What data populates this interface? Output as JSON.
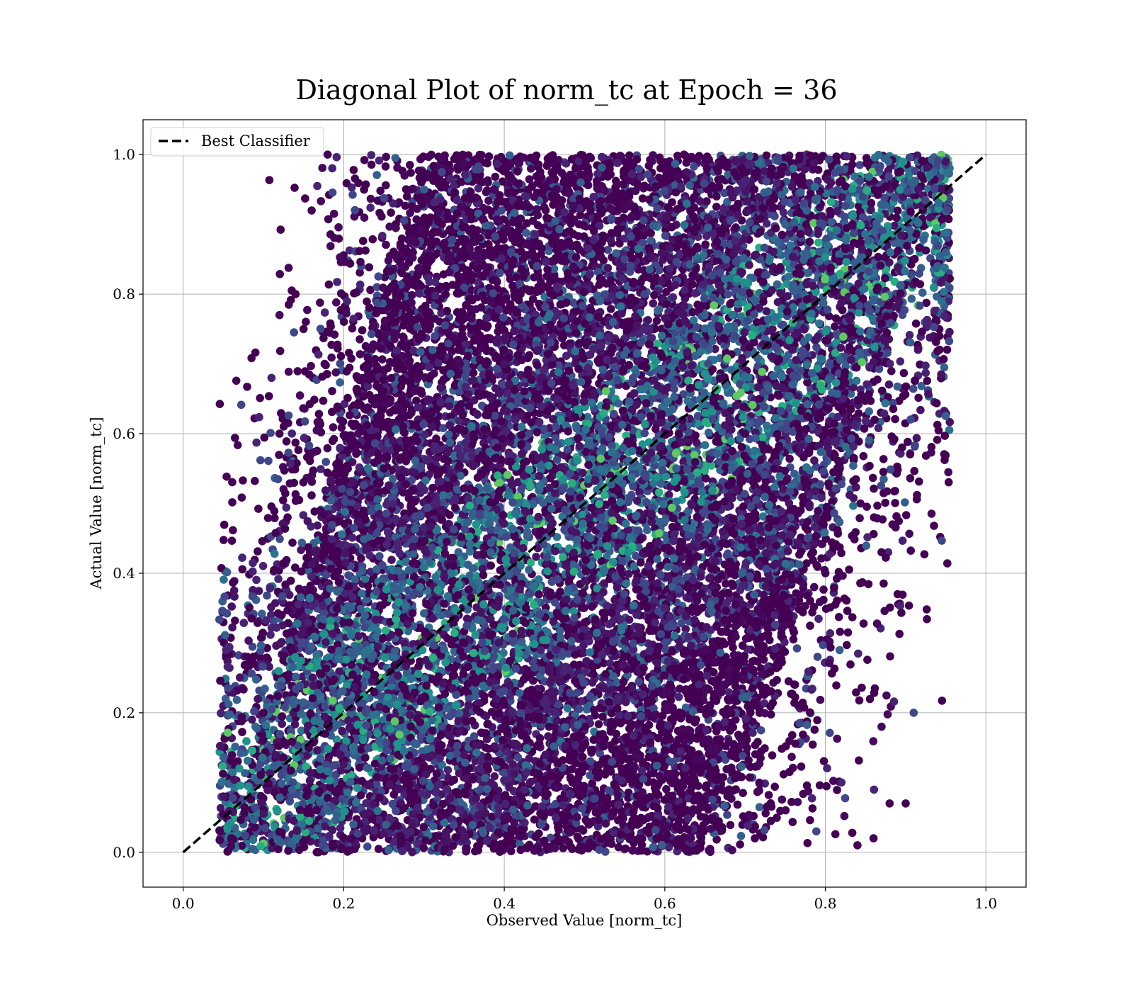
{
  "chart_data": {
    "type": "scatter",
    "title": "Diagonal Plot of norm_tc at Epoch = 36",
    "xlabel": "Observed Value [norm_tc]",
    "ylabel": "Actual Value [norm_tc]",
    "xlim": [
      -0.05,
      1.05
    ],
    "ylim": [
      -0.05,
      1.05
    ],
    "xticks": [
      {
        "value": 0.0,
        "label": "0.0"
      },
      {
        "value": 0.2,
        "label": "0.2"
      },
      {
        "value": 0.4,
        "label": "0.4"
      },
      {
        "value": 0.6,
        "label": "0.6"
      },
      {
        "value": 0.8,
        "label": "0.8"
      },
      {
        "value": 1.0,
        "label": "1.0"
      }
    ],
    "yticks": [
      {
        "value": 0.0,
        "label": "0.0"
      },
      {
        "value": 0.2,
        "label": "0.2"
      },
      {
        "value": 0.4,
        "label": "0.4"
      },
      {
        "value": 0.6,
        "label": "0.6"
      },
      {
        "value": 0.8,
        "label": "0.8"
      },
      {
        "value": 1.0,
        "label": "1.0"
      }
    ],
    "grid": true,
    "legend": {
      "placement": "top-left",
      "entries": [
        {
          "label": "Best Classifier",
          "style": "dashed",
          "color": "#000000"
        }
      ]
    },
    "reference_line": {
      "label": "Best Classifier",
      "x": [
        0.0,
        1.0
      ],
      "y": [
        0.0,
        1.0
      ],
      "color": "#000000",
      "style": "dashed"
    },
    "colormap": "viridis",
    "point_colors": [
      "#440154",
      "#46085c",
      "#471365",
      "#482374",
      "#3f4788",
      "#355f8d",
      "#2c728e",
      "#21918c",
      "#27ad81",
      "#5ec962",
      "#b5de2b"
    ],
    "density_description": {
      "x_range_observed": [
        0.05,
        0.95
      ],
      "y_range_actual": [
        0.0,
        1.0
      ]
    },
    "sample_points": [
      {
        "x": 0.05,
        "y": 0.08
      },
      {
        "x": 0.06,
        "y": 0.02
      },
      {
        "x": 0.07,
        "y": 0.12
      },
      {
        "x": 0.08,
        "y": 0.28
      },
      {
        "x": 0.1,
        "y": 0.2
      },
      {
        "x": 0.11,
        "y": 0.68
      },
      {
        "x": 0.12,
        "y": 0.77
      },
      {
        "x": 0.12,
        "y": 0.6
      },
      {
        "x": 0.13,
        "y": 0.48
      },
      {
        "x": 0.14,
        "y": 0.8
      },
      {
        "x": 0.15,
        "y": 0.75
      },
      {
        "x": 0.16,
        "y": 0.92
      },
      {
        "x": 0.18,
        "y": 1.0
      },
      {
        "x": 0.2,
        "y": 0.15
      },
      {
        "x": 0.25,
        "y": 0.55
      },
      {
        "x": 0.3,
        "y": 0.95
      },
      {
        "x": 0.35,
        "y": 0.3
      },
      {
        "x": 0.4,
        "y": 0.7
      },
      {
        "x": 0.45,
        "y": 0.1
      },
      {
        "x": 0.5,
        "y": 0.5
      },
      {
        "x": 0.55,
        "y": 0.85
      },
      {
        "x": 0.6,
        "y": 0.35
      },
      {
        "x": 0.65,
        "y": 0.05
      },
      {
        "x": 0.7,
        "y": 0.6
      },
      {
        "x": 0.75,
        "y": 0.9
      },
      {
        "x": 0.8,
        "y": 0.4
      },
      {
        "x": 0.82,
        "y": 0.1
      },
      {
        "x": 0.84,
        "y": 0.01
      },
      {
        "x": 0.86,
        "y": 0.02
      },
      {
        "x": 0.87,
        "y": 0.43
      },
      {
        "x": 0.87,
        "y": 0.18
      },
      {
        "x": 0.88,
        "y": 0.07
      },
      {
        "x": 0.89,
        "y": 0.37
      },
      {
        "x": 0.9,
        "y": 0.07
      },
      {
        "x": 0.91,
        "y": 0.2
      },
      {
        "x": 0.93,
        "y": 0.97
      },
      {
        "x": 0.95,
        "y": 0.99
      }
    ]
  }
}
